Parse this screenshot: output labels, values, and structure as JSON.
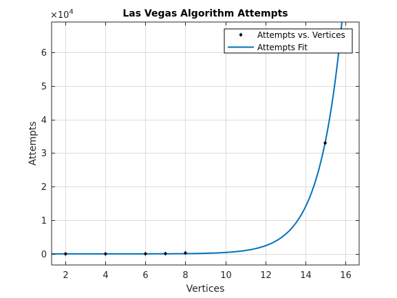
{
  "chart_data": {
    "type": "line",
    "title": "Las Vegas Algorithm Attempts",
    "xlabel": "Vertices",
    "ylabel": "Attempts",
    "xlim": [
      1.3,
      16.7
    ],
    "ylim": [
      -3300,
      69000
    ],
    "xticks": [
      2,
      4,
      6,
      8,
      10,
      12,
      14,
      16
    ],
    "yticks": [
      0,
      10000,
      20000,
      30000,
      40000,
      50000,
      60000
    ],
    "ytick_labels": [
      "0",
      "1",
      "2",
      "3",
      "4",
      "5",
      "6"
    ],
    "y_exponent_base": "×10",
    "y_exponent_power": "4",
    "grid": true,
    "legend_position": "top-right",
    "series": [
      {
        "name": "Attempts vs. Vertices",
        "style": "markers",
        "color": "#000000",
        "x": [
          2,
          4,
          6,
          7,
          8,
          15
        ],
        "y": [
          2,
          10,
          40,
          80,
          250,
          33000
        ]
      },
      {
        "name": "Attempts Fit",
        "style": "line",
        "color": "#0072bd",
        "model": "exponential",
        "a": 0.0658,
        "b": 0.8755
      }
    ]
  }
}
